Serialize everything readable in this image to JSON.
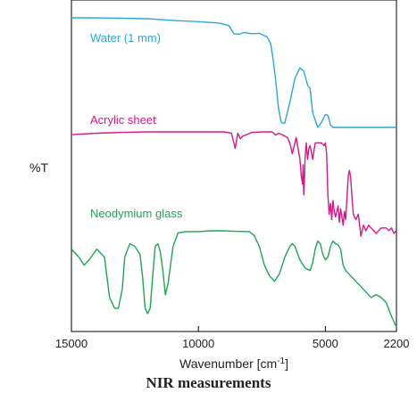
{
  "caption": "NIR measurements",
  "chart_data": {
    "type": "line",
    "xlabel": "Wavenumber [cm",
    "xlabel_superscript": "-1",
    "xlabel_suffix": "]",
    "ylabel": "%T",
    "x_ticks": [
      15000,
      10000,
      5000,
      2200
    ],
    "x_tick_labels": [
      "15000",
      "10000",
      "5000",
      "2200"
    ],
    "xlim": [
      15000,
      2200
    ],
    "grid": false,
    "series": [
      {
        "name": "Water (1 mm)",
        "color": "#29a8d8",
        "x": [
          15000,
          14200,
          13000,
          12000,
          11000,
          10000,
          9200,
          8800,
          8600,
          8400,
          8200,
          7900,
          7600,
          7300,
          7150,
          7050,
          6950,
          6850,
          6750,
          6700,
          6600,
          6400,
          6200,
          6000,
          5850,
          5700,
          5600,
          5500,
          5300,
          5150,
          5000,
          4900,
          4800,
          4700,
          4500,
          4000,
          3500,
          3000,
          2500,
          2200
        ],
        "values": [
          99,
          99,
          98.8,
          98.5,
          97.5,
          96.8,
          96,
          94.5,
          89.8,
          89.5,
          90.5,
          89.8,
          90,
          88,
          84,
          74,
          62,
          47,
          39,
          38,
          38,
          50,
          64,
          70,
          68,
          60,
          58,
          44,
          35.5,
          38.5,
          43,
          42.5,
          37,
          35.5,
          35.5,
          35.5,
          35.5,
          35.5,
          35.5,
          35.5
        ]
      },
      {
        "name": "Acrylic sheet",
        "color": "#d7178a",
        "x": [
          15000,
          14000,
          13000,
          12000,
          11000,
          10000,
          9000,
          8700,
          8550,
          8450,
          8350,
          8250,
          8100,
          7900,
          7500,
          7100,
          6950,
          6850,
          6700,
          6500,
          6400,
          6300,
          6150,
          6000,
          5950,
          5900,
          5880,
          5850,
          5820,
          5800,
          5750,
          5700,
          5650,
          5600,
          5500,
          5400,
          5300,
          5150,
          5050,
          5000,
          4950,
          4900,
          4850,
          4800,
          4750,
          4700,
          4650,
          4600,
          4500,
          4450,
          4400,
          4350,
          4300,
          4250,
          4200,
          4100,
          4050,
          4000,
          3950,
          3900,
          3800,
          3700,
          3600,
          3500,
          3400,
          3300,
          3200,
          3000,
          2900,
          2800,
          2700,
          2600,
          2500,
          2400,
          2300,
          2200
        ],
        "values": [
          67,
          67.5,
          67.8,
          68,
          68,
          68,
          68,
          67.5,
          62,
          67.5,
          65.5,
          66.5,
          67,
          67.8,
          68,
          68,
          66.8,
          67.5,
          67,
          66,
          64,
          60,
          66,
          58,
          52,
          49,
          56,
          45,
          52,
          58,
          64,
          58,
          62,
          63,
          58,
          64,
          64,
          64,
          63,
          64,
          60,
          45,
          38,
          42,
          36,
          43,
          39,
          37,
          41,
          35,
          40,
          37,
          34,
          39,
          36,
          52,
          54,
          51,
          44,
          38,
          36,
          38,
          30,
          34,
          32,
          34,
          33,
          31,
          32,
          33,
          33,
          33,
          32,
          33,
          31,
          32
        ]
      },
      {
        "name": "Neodymium glass",
        "color": "#1da653",
        "x": [
          15000,
          14700,
          14500,
          14300,
          14000,
          13700,
          13500,
          13300,
          13150,
          13000,
          12900,
          12700,
          12500,
          12300,
          12200,
          12100,
          12000,
          11900,
          11800,
          11700,
          11600,
          11500,
          11400,
          11300,
          11200,
          11000,
          10800,
          10500,
          10000,
          9500,
          9000,
          8500,
          8000,
          7800,
          7600,
          7400,
          7200,
          7000,
          6800,
          6600,
          6400,
          6300,
          6200,
          6000,
          5800,
          5600,
          5500,
          5400,
          5300,
          5200,
          5100,
          5000,
          4900,
          4800,
          4700,
          4600,
          4500,
          4400,
          4300,
          4200,
          4100,
          4000,
          3800,
          3600,
          3400,
          3200,
          3000,
          2800,
          2600,
          2400,
          2200
        ],
        "values": [
          23,
          20,
          17,
          19,
          23,
          20,
          5,
          1,
          1,
          8,
          20,
          25,
          24,
          21,
          13,
          1,
          -1,
          1,
          13,
          24,
          25,
          22,
          15,
          6,
          10,
          24,
          29,
          29.5,
          29.5,
          29.8,
          29.8,
          29.6,
          29.5,
          28,
          24,
          17,
          13,
          11,
          14,
          20,
          24,
          25,
          24,
          19,
          16,
          15,
          18,
          23,
          26,
          25,
          21,
          19,
          20,
          24,
          26,
          25,
          24.5,
          23,
          17,
          15,
          14,
          13,
          11,
          9,
          7,
          5,
          6,
          5,
          3,
          -2,
          -6
        ]
      }
    ]
  }
}
